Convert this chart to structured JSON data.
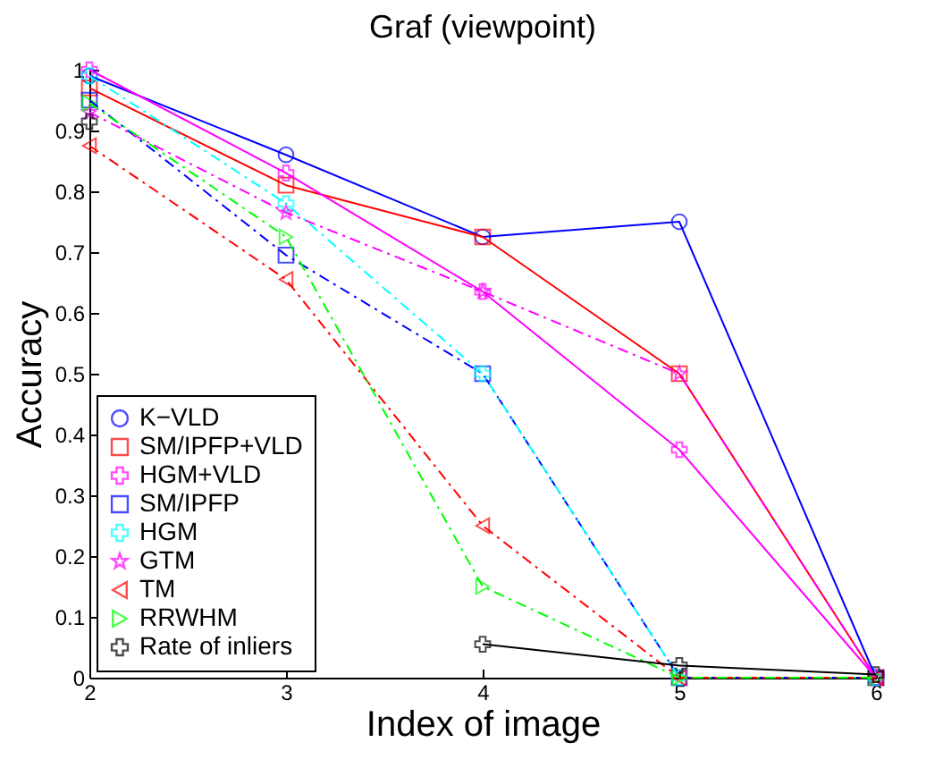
{
  "chart_data": {
    "type": "line",
    "title": "Graf (viewpoint)",
    "xlabel": "Index of image",
    "ylabel": "Accuracy",
    "x": [
      2,
      3,
      4,
      5,
      6
    ],
    "xlim": [
      2,
      6
    ],
    "xticks": [
      2,
      3,
      4,
      5,
      6
    ],
    "ylim": [
      0,
      1
    ],
    "yticks": [
      0,
      0.1,
      0.2,
      0.3,
      0.4,
      0.5,
      0.6,
      0.7,
      0.8,
      0.9,
      1
    ],
    "grid": false,
    "legend": "bottom left",
    "series": [
      {
        "name": "K−VLD",
        "color": "#0000ff",
        "marker": "circle",
        "line_style": "solid",
        "values": [
          0.99,
          0.86,
          0.725,
          0.75,
          0
        ]
      },
      {
        "name": "SM/IPFP+VLD",
        "color": "#ff0000",
        "marker": "square",
        "line_style": "solid",
        "values": [
          0.97,
          0.81,
          0.725,
          0.5,
          0
        ]
      },
      {
        "name": "HGM+VLD",
        "color": "#ff00ff",
        "marker": "cross",
        "line_style": "solid",
        "values": [
          1.0,
          0.83,
          0.635,
          0.375,
          0
        ]
      },
      {
        "name": "SM/IPFP",
        "color": "#0000ff",
        "marker": "square",
        "line_style": "dashed",
        "values": [
          0.95,
          0.695,
          0.5,
          0,
          0
        ]
      },
      {
        "name": "HGM",
        "color": "#00ffff",
        "marker": "cross",
        "line_style": "dashed",
        "values": [
          0.99,
          0.78,
          0.5,
          0,
          0
        ]
      },
      {
        "name": "GTM",
        "color": "#ff00ff",
        "marker": "star",
        "line_style": "dashed",
        "values": [
          0.93,
          0.765,
          0.635,
          0.5,
          0
        ]
      },
      {
        "name": "TM",
        "color": "#ff0000",
        "marker": "triangle-left",
        "line_style": "dashed",
        "values": [
          0.875,
          0.655,
          0.25,
          0,
          0
        ]
      },
      {
        "name": "RRWHM",
        "color": "#00ff00",
        "marker": "triangle-right",
        "line_style": "dashed",
        "values": [
          0.945,
          0.725,
          0.15,
          0,
          0
        ]
      },
      {
        "name": "Rate of inliers",
        "color": "#000000",
        "marker": "cross",
        "line_style": "solid",
        "values": [
          0.915,
          null,
          0.055,
          0.02,
          0.005
        ]
      }
    ]
  }
}
